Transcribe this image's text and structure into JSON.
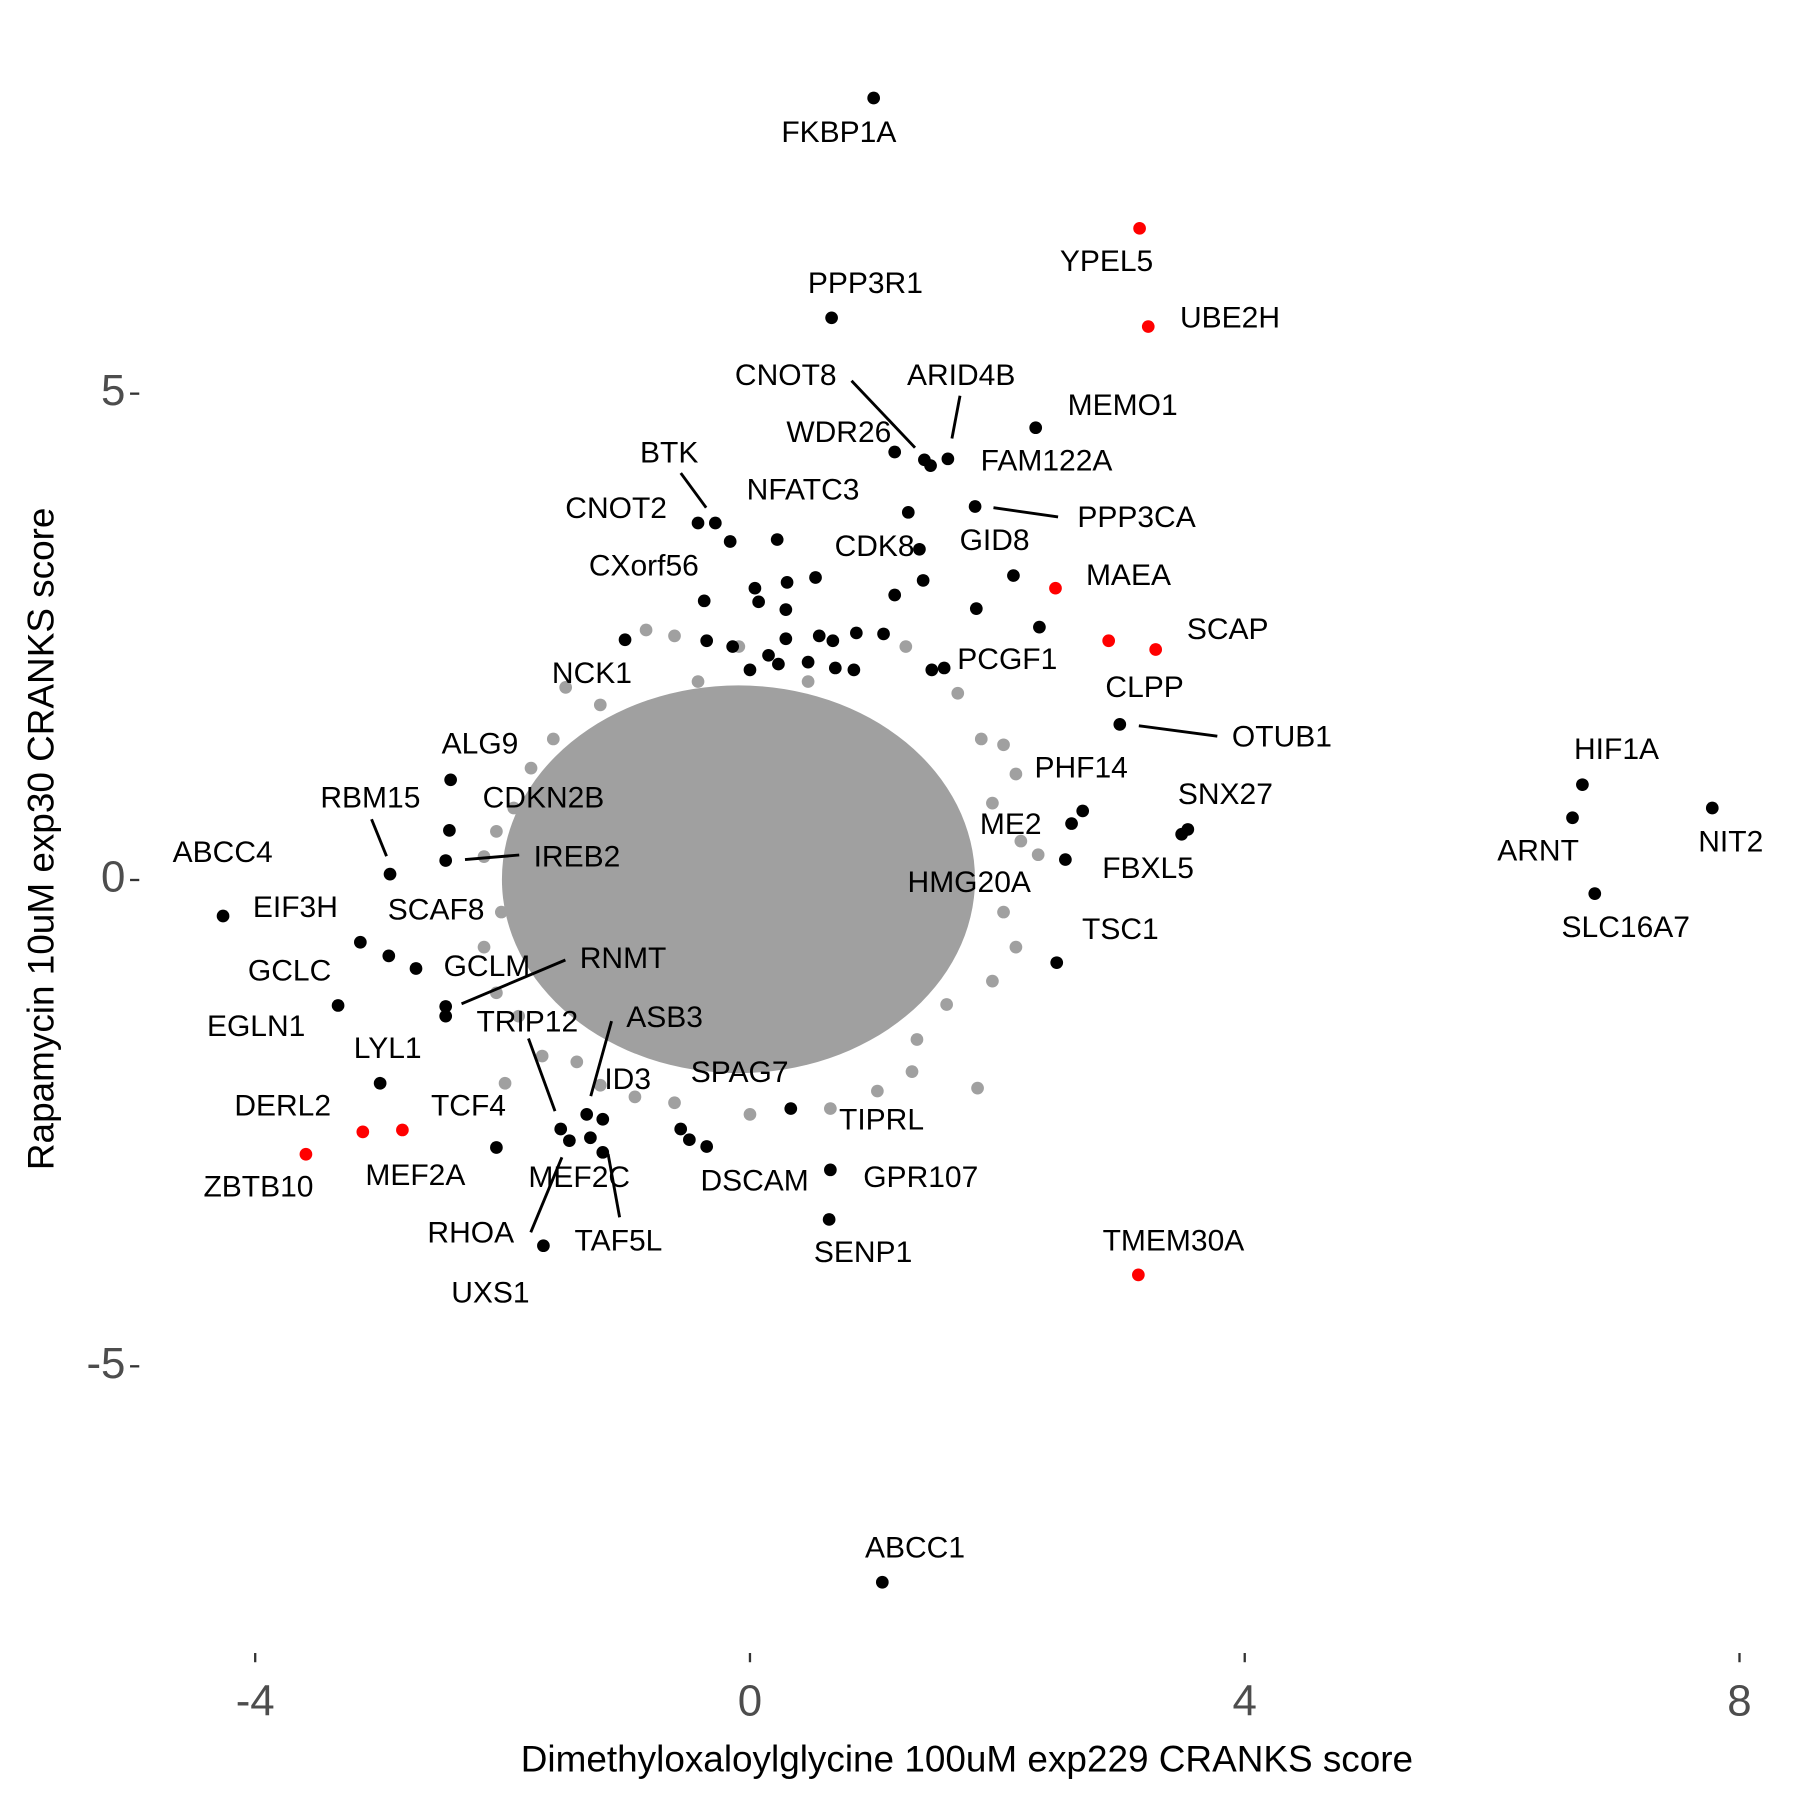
{
  "chart_data": {
    "type": "scatter",
    "x_label": "Dimethyloxaloylglycine 100uM exp229 CRANKS score",
    "y_label": "Rapamycin 10uM exp30 CRANKS score",
    "xlim": [
      -4.9,
      8.2
    ],
    "ylim": [
      -7.9,
      8.3
    ],
    "xticks": [
      -4,
      0,
      4,
      8
    ],
    "yticks": [
      -5,
      0,
      5
    ],
    "grid": false,
    "series": [
      {
        "color": "#a0a0a0",
        "x": [
          -1.49,
          -0.84,
          -0.61,
          -0.42,
          -0.09,
          0.47,
          1.26,
          1.68,
          1.87,
          2.05,
          2.15,
          1.96,
          2.19,
          2.33,
          2.05,
          2.15,
          1.96,
          1.84,
          1.59,
          1.35,
          1.31,
          1.03,
          0.65,
          0.0,
          -0.61,
          -0.93,
          -1.21,
          -1.4,
          -1.68,
          -1.98,
          -1.87,
          -2.05,
          -2.15,
          -2.01,
          -2.15,
          -2.05,
          -1.91,
          -1.77,
          -1.59,
          -1.21
        ],
        "y": [
          1.98,
          2.57,
          2.51,
          2.04,
          2.4,
          2.04,
          2.4,
          1.92,
          1.45,
          1.39,
          1.09,
          0.79,
          0.4,
          0.26,
          -0.33,
          -0.69,
          -1.04,
          -2.14,
          -1.28,
          -1.64,
          -1.97,
          -2.17,
          -2.35,
          -2.41,
          -2.29,
          -2.23,
          -2.11,
          -1.87,
          -1.81,
          -2.09,
          -1.4,
          -1.16,
          -0.69,
          -0.33,
          0.24,
          0.5,
          0.74,
          1.15,
          1.45,
          1.8
        ]
      },
      {
        "color": "#000000",
        "x": [
          1.0,
          0.66,
          2.31,
          1.17,
          1.41,
          1.6,
          1.46,
          1.82,
          1.28,
          -0.28,
          -0.42,
          2.13,
          1.37,
          -0.37,
          1.57,
          -1.01,
          2.99,
          6.73,
          7.78,
          6.65,
          6.83,
          2.69,
          2.6,
          3.54,
          3.49,
          2.55,
          2.48,
          1.07,
          -2.42,
          -2.43,
          -2.91,
          -2.46,
          -4.26,
          -3.15,
          -2.92,
          -2.7,
          -3.33,
          -2.46,
          -2.46,
          -2.99,
          -1.53,
          -1.32,
          -1.19,
          -1.46,
          -1.29,
          -1.19,
          -2.05,
          -1.67,
          -0.56,
          -0.35,
          0.33,
          0.65,
          0.64,
          -0.16,
          0.22,
          0.04,
          0.07,
          0.3,
          0.29,
          0.53,
          0.29,
          0.23,
          -0.35,
          -0.14,
          0.0,
          0.15,
          0.47,
          0.56,
          0.67,
          0.69,
          0.86,
          1.08,
          0.84,
          1.17,
          1.4,
          1.83,
          2.34,
          1.47,
          -0.49
        ],
        "y": [
          8.04,
          5.78,
          4.65,
          4.4,
          4.32,
          4.33,
          4.26,
          3.84,
          3.78,
          3.67,
          3.67,
          3.13,
          3.4,
          2.87,
          2.18,
          2.47,
          1.6,
          0.98,
          0.74,
          0.64,
          -0.14,
          0.71,
          0.58,
          0.52,
          0.47,
          0.21,
          -0.85,
          -7.22,
          1.03,
          0.51,
          0.06,
          0.2,
          -0.37,
          -0.64,
          -0.78,
          -0.91,
          -1.29,
          -1.4,
          -1.3,
          -2.09,
          -2.56,
          -2.41,
          -2.46,
          -2.68,
          -2.65,
          -2.8,
          -2.75,
          -3.76,
          -2.56,
          -2.74,
          -2.35,
          -2.98,
          -3.49,
          3.48,
          3.5,
          3.0,
          2.86,
          3.06,
          2.78,
          3.11,
          2.48,
          2.22,
          2.46,
          2.4,
          2.16,
          2.31,
          2.24,
          2.51,
          2.46,
          2.18,
          2.54,
          2.53,
          2.16,
          2.93,
          3.08,
          2.79,
          2.6,
          2.16,
          -2.67
        ],
        "labels": [
          "FKBP1A",
          "PPP3R1",
          "MEMO1",
          "WDR26",
          "CNOT8",
          "ARID4B",
          "FAM122A",
          "PPP3CA",
          "NFATC3",
          "BTK",
          "CNOT2",
          "GID8",
          "CDK8",
          "CXorf56",
          "PCGF1",
          "NCK1",
          "OTUB1",
          "HIF1A",
          "NIT2",
          "ARNT",
          "SLC16A7",
          "PHF14",
          "ME2",
          "SNX27",
          "FBXL5",
          "HMG20A",
          "TSC1",
          "ABCC1",
          "ALG9",
          "CDKN2B",
          "RBM15",
          "IREB2",
          "ABCC4",
          "EIF3H",
          "SCAF8",
          "GCLM",
          "GCLC",
          "EGLN1",
          "RNMT",
          "LYL1",
          "TRIP12",
          "ASB3",
          "ID3",
          "MEF2C",
          "RHOA",
          "TAF5L",
          "MEF2A",
          "UXS1",
          "SPAG7",
          "DSCAM",
          "TIPRL",
          "GPR107",
          "SENP1",
          null,
          null,
          null,
          null,
          null,
          null,
          null,
          null,
          null,
          null,
          null,
          null,
          null,
          null,
          null,
          null,
          null,
          null,
          null,
          null,
          null,
          null,
          null,
          null,
          null,
          null
        ]
      },
      {
        "color": "#ff0000",
        "x": [
          3.15,
          3.22,
          2.47,
          2.9,
          3.28,
          3.14,
          -3.59,
          -3.13,
          -2.81
        ],
        "y": [
          6.7,
          5.69,
          3.0,
          2.46,
          2.37,
          -4.06,
          -2.82,
          -2.59,
          -2.57
        ],
        "labels": [
          "YPEL5",
          "UBE2H",
          "MAEA",
          "CLPP",
          "SCAP",
          "TMEM30A",
          "ZBTB10",
          "DERL2",
          "TCF4"
        ]
      }
    ]
  }
}
